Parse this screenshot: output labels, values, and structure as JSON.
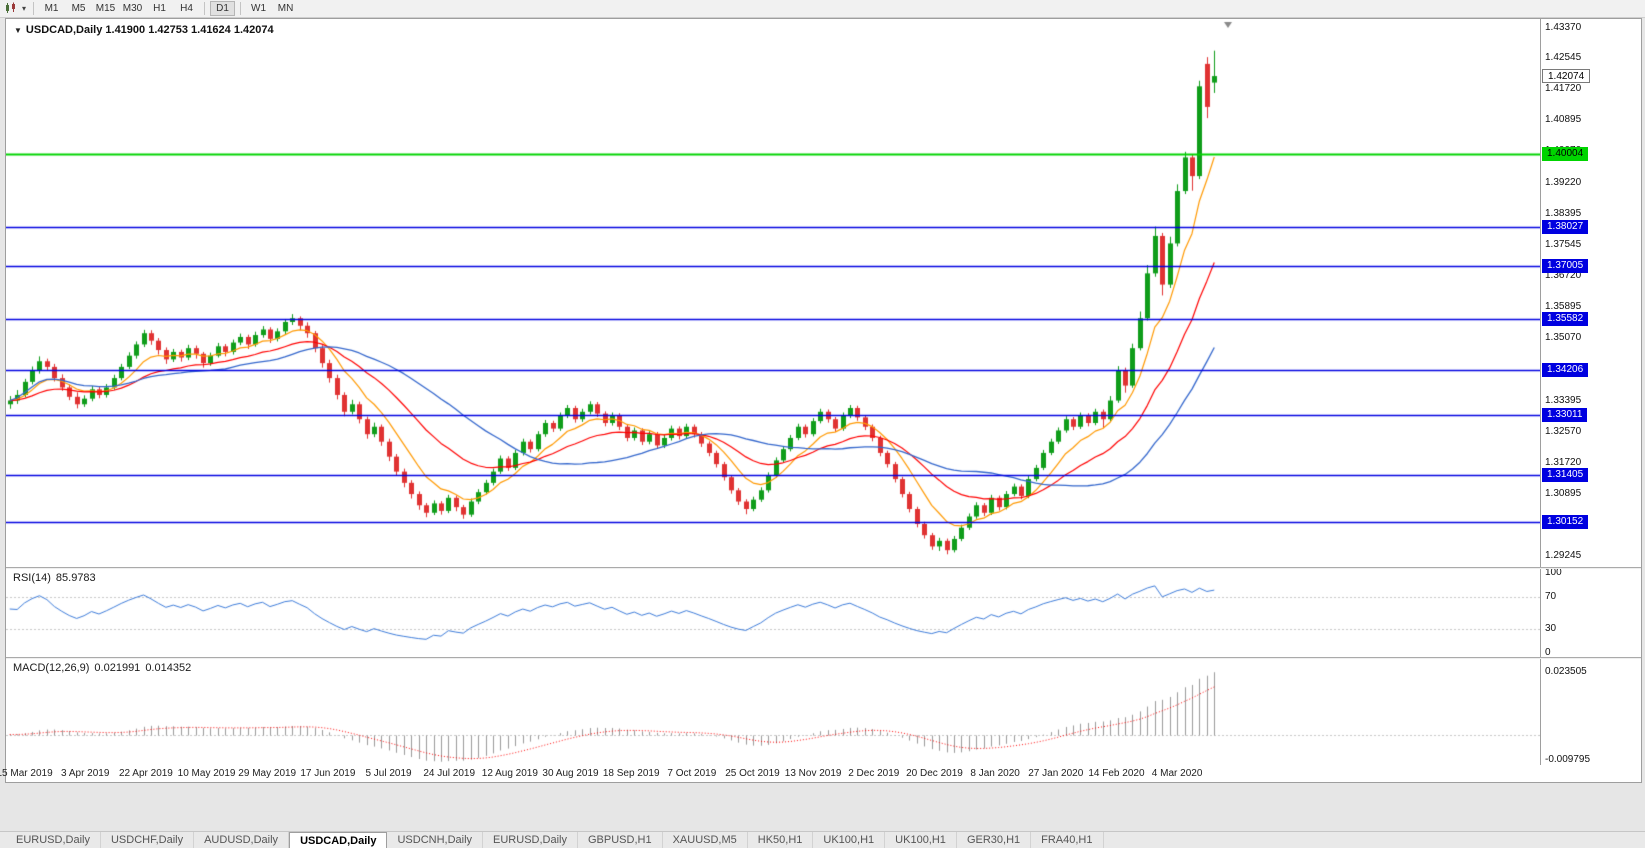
{
  "toolbar": {
    "timeframes": [
      "M1",
      "M5",
      "M15",
      "M30",
      "H1",
      "H4",
      "D1",
      "W1",
      "MN"
    ],
    "active_timeframe": "D1"
  },
  "chart": {
    "symbol_period": "USDCAD,Daily",
    "ohlc_text": "1.41900 1.42753 1.41624 1.42074",
    "open": "1.41900",
    "high": "1.42753",
    "low": "1.41624",
    "close": "1.42074",
    "current_price": "1.42074",
    "price_ticks": [
      "1.43370",
      "1.42545",
      "1.41720",
      "1.40895",
      "1.40070",
      "1.39220",
      "1.38395",
      "1.37545",
      "1.36720",
      "1.35895",
      "1.35070",
      "1.34245",
      "1.33395",
      "1.32570",
      "1.31720",
      "1.30895",
      "1.30070",
      "1.29245"
    ],
    "date_labels": [
      "15 Mar 2019",
      "3 Apr 2019",
      "22 Apr 2019",
      "10 May 2019",
      "29 May 2019",
      "17 Jun 2019",
      "5 Jul 2019",
      "24 Jul 2019",
      "12 Aug 2019",
      "30 Aug 2019",
      "18 Sep 2019",
      "7 Oct 2019",
      "25 Oct 2019",
      "13 Nov 2019",
      "2 Dec 2019",
      "20 Dec 2019",
      "8 Jan 2020",
      "27 Jan 2020",
      "14 Feb 2020",
      "4 Mar 2020"
    ],
    "hlines": [
      {
        "value": 1.40004,
        "label": "1.40004",
        "color": "#00d400",
        "text_color": "#000000",
        "width": 2
      },
      {
        "value": 1.38027,
        "label": "1.38027",
        "color": "#0000e0",
        "text_color": "#ffffff",
        "width": 1.5
      },
      {
        "value": 1.37005,
        "label": "1.37005",
        "color": "#0000e0",
        "text_color": "#ffffff",
        "width": 1.5
      },
      {
        "value": 1.35582,
        "label": "1.35582",
        "color": "#0000e0",
        "text_color": "#ffffff",
        "width": 1.5
      },
      {
        "value": 1.34206,
        "label": "1.34206",
        "color": "#0000e0",
        "text_color": "#ffffff",
        "width": 1.5
      },
      {
        "value": 1.33011,
        "label": "1.33011",
        "color": "#0000e0",
        "text_color": "#ffffff",
        "width": 1.5
      },
      {
        "value": 1.31405,
        "label": "1.31405",
        "color": "#0000e0",
        "text_color": "#ffffff",
        "width": 1.5
      },
      {
        "value": 1.30152,
        "label": "1.30152",
        "color": "#0000e0",
        "text_color": "#ffffff",
        "width": 1.5
      }
    ]
  },
  "rsi": {
    "name": "RSI(14)",
    "value": "85.9783",
    "scale": [
      "100",
      "70",
      "30",
      "0"
    ],
    "levels": [
      70,
      30
    ]
  },
  "macd": {
    "name": "MACD(12,26,9)",
    "value_main": "0.021991",
    "value_signal": "0.014352",
    "scale_top": "0.023505",
    "scale_bottom": "-0.009795"
  },
  "tabs": {
    "items": [
      "EURUSD,Daily",
      "USDCHF,Daily",
      "AUDUSD,Daily",
      "USDCAD,Daily",
      "USDCNH,Daily",
      "EURUSD,Daily",
      "GBPUSD,H1",
      "XAUUSD,M5",
      "HK50,H1",
      "UK100,H1",
      "UK100,H1",
      "GER30,H1",
      "FRA40,H1"
    ],
    "active_index": 3
  },
  "colors": {
    "candle_up": "#0f9d1a",
    "candle_down": "#e03232",
    "ma_fast": "#ff9900",
    "ma_mid": "#ff0000",
    "ma_slow": "#3366cc",
    "hline_blue": "#0000e0",
    "hline_green": "#00d400",
    "rsi_line": "#3c7bd9",
    "macd_hist": "#9a9a9a",
    "macd_signal": "#ff0000",
    "background": "#ffffff"
  },
  "chart_data": {
    "type": "candlestick",
    "symbol": "USDCAD",
    "timeframe": "Daily",
    "title": "USDCAD,Daily",
    "price_range": [
      1.2895,
      1.436
    ],
    "visible_dates": [
      "15 Mar 2019",
      "4 Mar 2020"
    ],
    "moving_averages": [
      {
        "name": "fast-ma",
        "method": "ema",
        "period": 8,
        "color": "#ff9900"
      },
      {
        "name": "mid-ma",
        "method": "ema",
        "period": 21,
        "color": "#ff0000"
      },
      {
        "name": "slow-ma",
        "method": "sma",
        "period": 30,
        "color": "#3366cc"
      }
    ],
    "indicators": [
      {
        "type": "RSI",
        "period": 14,
        "last": 85.9783,
        "levels": [
          30,
          70
        ],
        "range": [
          0,
          100
        ]
      },
      {
        "type": "MACD",
        "params": [
          12,
          26,
          9
        ],
        "last_main": 0.021991,
        "last_signal": 0.014352,
        "range": [
          -0.009795,
          0.023505
        ]
      }
    ],
    "horizontal_levels": [
      1.40004,
      1.38027,
      1.37005,
      1.35582,
      1.34206,
      1.33011,
      1.31405,
      1.30152
    ],
    "candles": [
      [
        1.333,
        1.3352,
        1.3318,
        1.334
      ],
      [
        1.334,
        1.3368,
        1.3331,
        1.3355
      ],
      [
        1.3355,
        1.3398,
        1.3349,
        1.339
      ],
      [
        1.339,
        1.3431,
        1.3383,
        1.342
      ],
      [
        1.342,
        1.3458,
        1.3412,
        1.3445
      ],
      [
        1.3445,
        1.3452,
        1.342,
        1.343
      ],
      [
        1.343,
        1.3438,
        1.3391,
        1.34
      ],
      [
        1.34,
        1.341,
        1.3366,
        1.3375
      ],
      [
        1.3375,
        1.3383,
        1.3341,
        1.335
      ],
      [
        1.335,
        1.3362,
        1.3319,
        1.333
      ],
      [
        1.333,
        1.3354,
        1.3323,
        1.3345
      ],
      [
        1.3345,
        1.3379,
        1.3338,
        1.337
      ],
      [
        1.337,
        1.3377,
        1.3346,
        1.3355
      ],
      [
        1.3355,
        1.3384,
        1.3348,
        1.3375
      ],
      [
        1.3375,
        1.3409,
        1.3369,
        1.34
      ],
      [
        1.34,
        1.3438,
        1.3394,
        1.343
      ],
      [
        1.343,
        1.3469,
        1.3424,
        1.346
      ],
      [
        1.346,
        1.3498,
        1.3452,
        1.349
      ],
      [
        1.349,
        1.3529,
        1.3483,
        1.352
      ],
      [
        1.352,
        1.3528,
        1.3489,
        1.35
      ],
      [
        1.35,
        1.3507,
        1.3463,
        1.3475
      ],
      [
        1.3475,
        1.3482,
        1.3438,
        1.345
      ],
      [
        1.345,
        1.3478,
        1.3443,
        1.347
      ],
      [
        1.347,
        1.3476,
        1.3444,
        1.3455
      ],
      [
        1.3455,
        1.3489,
        1.3448,
        1.348
      ],
      [
        1.348,
        1.3487,
        1.3452,
        1.3465
      ],
      [
        1.3465,
        1.347,
        1.3428,
        1.344
      ],
      [
        1.344,
        1.3468,
        1.3433,
        1.346
      ],
      [
        1.346,
        1.3494,
        1.3455,
        1.3485
      ],
      [
        1.3485,
        1.3491,
        1.3458,
        1.347
      ],
      [
        1.347,
        1.3503,
        1.3463,
        1.3495
      ],
      [
        1.3495,
        1.3519,
        1.3488,
        1.351
      ],
      [
        1.351,
        1.3516,
        1.3478,
        1.349
      ],
      [
        1.349,
        1.3524,
        1.3484,
        1.3515
      ],
      [
        1.3515,
        1.3539,
        1.3508,
        1.353
      ],
      [
        1.353,
        1.3536,
        1.3494,
        1.3505
      ],
      [
        1.3505,
        1.3533,
        1.3498,
        1.3525
      ],
      [
        1.3525,
        1.3558,
        1.3518,
        1.355
      ],
      [
        1.355,
        1.3571,
        1.3542,
        1.356
      ],
      [
        1.356,
        1.3565,
        1.3528,
        1.354
      ],
      [
        1.354,
        1.3549,
        1.3508,
        1.352
      ],
      [
        1.352,
        1.3526,
        1.3469,
        1.348
      ],
      [
        1.348,
        1.3488,
        1.3428,
        1.344
      ],
      [
        1.344,
        1.3449,
        1.3388,
        1.34
      ],
      [
        1.34,
        1.3409,
        1.3343,
        1.3355
      ],
      [
        1.3355,
        1.3362,
        1.3298,
        1.331
      ],
      [
        1.331,
        1.3342,
        1.3303,
        1.333
      ],
      [
        1.333,
        1.3337,
        1.3279,
        1.329
      ],
      [
        1.329,
        1.3297,
        1.3238,
        1.325
      ],
      [
        1.325,
        1.3281,
        1.3242,
        1.327
      ],
      [
        1.327,
        1.3276,
        1.3219,
        1.323
      ],
      [
        1.323,
        1.3238,
        1.3178,
        1.319
      ],
      [
        1.319,
        1.3197,
        1.3139,
        1.315
      ],
      [
        1.315,
        1.3158,
        1.3108,
        1.312
      ],
      [
        1.312,
        1.3127,
        1.3078,
        1.309
      ],
      [
        1.309,
        1.3097,
        1.3048,
        1.306
      ],
      [
        1.306,
        1.3066,
        1.3028,
        1.304
      ],
      [
        1.304,
        1.3073,
        1.3034,
        1.3065
      ],
      [
        1.3065,
        1.3071,
        1.3035,
        1.3045
      ],
      [
        1.3045,
        1.3088,
        1.3039,
        1.308
      ],
      [
        1.308,
        1.3086,
        1.3044,
        1.3055
      ],
      [
        1.3055,
        1.3061,
        1.3024,
        1.3035
      ],
      [
        1.3035,
        1.3078,
        1.3029,
        1.307
      ],
      [
        1.307,
        1.3103,
        1.3063,
        1.3095
      ],
      [
        1.3095,
        1.3128,
        1.3089,
        1.312
      ],
      [
        1.312,
        1.3158,
        1.3113,
        1.315
      ],
      [
        1.315,
        1.3193,
        1.3144,
        1.3185
      ],
      [
        1.3185,
        1.3191,
        1.3152,
        1.316
      ],
      [
        1.316,
        1.3208,
        1.3154,
        1.32
      ],
      [
        1.32,
        1.3238,
        1.3193,
        1.323
      ],
      [
        1.323,
        1.3236,
        1.3201,
        1.321
      ],
      [
        1.321,
        1.3258,
        1.3204,
        1.325
      ],
      [
        1.325,
        1.3288,
        1.3243,
        1.328
      ],
      [
        1.328,
        1.3286,
        1.3256,
        1.3265
      ],
      [
        1.3265,
        1.3308,
        1.3259,
        1.33
      ],
      [
        1.33,
        1.3328,
        1.3293,
        1.332
      ],
      [
        1.332,
        1.3326,
        1.3281,
        1.329
      ],
      [
        1.329,
        1.3318,
        1.3283,
        1.331
      ],
      [
        1.331,
        1.3338,
        1.3303,
        1.333
      ],
      [
        1.333,
        1.3336,
        1.3296,
        1.3305
      ],
      [
        1.3305,
        1.3311,
        1.3271,
        1.328
      ],
      [
        1.328,
        1.3308,
        1.3273,
        1.33
      ],
      [
        1.33,
        1.3306,
        1.3261,
        1.327
      ],
      [
        1.327,
        1.3276,
        1.3231,
        1.324
      ],
      [
        1.324,
        1.3268,
        1.3233,
        1.326
      ],
      [
        1.326,
        1.3266,
        1.3221,
        1.323
      ],
      [
        1.323,
        1.3258,
        1.3223,
        1.325
      ],
      [
        1.325,
        1.3256,
        1.3211,
        1.322
      ],
      [
        1.322,
        1.3248,
        1.3213,
        1.324
      ],
      [
        1.324,
        1.3273,
        1.3233,
        1.3265
      ],
      [
        1.3265,
        1.3271,
        1.3236,
        1.3245
      ],
      [
        1.3245,
        1.3278,
        1.3238,
        1.327
      ],
      [
        1.327,
        1.3276,
        1.3241,
        1.325
      ],
      [
        1.325,
        1.3256,
        1.3216,
        1.3225
      ],
      [
        1.3225,
        1.3231,
        1.3191,
        1.32
      ],
      [
        1.32,
        1.3206,
        1.3161,
        1.317
      ],
      [
        1.317,
        1.3176,
        1.3126,
        1.3135
      ],
      [
        1.3135,
        1.3141,
        1.3091,
        1.31
      ],
      [
        1.31,
        1.3106,
        1.3061,
        1.307
      ],
      [
        1.307,
        1.3076,
        1.3036,
        1.305
      ],
      [
        1.305,
        1.3083,
        1.3044,
        1.3075
      ],
      [
        1.3075,
        1.3108,
        1.3069,
        1.31
      ],
      [
        1.31,
        1.3148,
        1.3094,
        1.314
      ],
      [
        1.314,
        1.3188,
        1.3134,
        1.318
      ],
      [
        1.318,
        1.3218,
        1.3174,
        1.321
      ],
      [
        1.321,
        1.3248,
        1.3204,
        1.324
      ],
      [
        1.324,
        1.3278,
        1.3234,
        1.327
      ],
      [
        1.327,
        1.3276,
        1.3241,
        1.325
      ],
      [
        1.325,
        1.3293,
        1.3244,
        1.3285
      ],
      [
        1.3285,
        1.3318,
        1.3279,
        1.331
      ],
      [
        1.331,
        1.3316,
        1.3281,
        1.329
      ],
      [
        1.329,
        1.3296,
        1.3256,
        1.3265
      ],
      [
        1.3265,
        1.3308,
        1.3259,
        1.33
      ],
      [
        1.33,
        1.3328,
        1.3293,
        1.332
      ],
      [
        1.332,
        1.3326,
        1.3286,
        1.3295
      ],
      [
        1.3295,
        1.3301,
        1.3261,
        1.327
      ],
      [
        1.327,
        1.3276,
        1.3231,
        1.324
      ],
      [
        1.324,
        1.3246,
        1.3191,
        1.32
      ],
      [
        1.32,
        1.3206,
        1.3161,
        1.317
      ],
      [
        1.317,
        1.3176,
        1.3121,
        1.313
      ],
      [
        1.313,
        1.3136,
        1.3081,
        1.309
      ],
      [
        1.309,
        1.3096,
        1.3041,
        1.305
      ],
      [
        1.305,
        1.3056,
        1.3001,
        1.301
      ],
      [
        1.301,
        1.3016,
        1.2971,
        1.298
      ],
      [
        1.298,
        1.2986,
        1.2941,
        1.295
      ],
      [
        1.295,
        1.2973,
        1.2938,
        1.2965
      ],
      [
        1.2965,
        1.2971,
        1.2929,
        1.294
      ],
      [
        1.294,
        1.2978,
        1.2934,
        1.297
      ],
      [
        1.297,
        1.3008,
        1.2964,
        1.3
      ],
      [
        1.3,
        1.3038,
        1.2994,
        1.303
      ],
      [
        1.303,
        1.3068,
        1.3024,
        1.306
      ],
      [
        1.306,
        1.3066,
        1.3031,
        1.304
      ],
      [
        1.304,
        1.3088,
        1.3034,
        1.308
      ],
      [
        1.308,
        1.3086,
        1.3046,
        1.3055
      ],
      [
        1.3055,
        1.3098,
        1.3049,
        1.309
      ],
      [
        1.309,
        1.3118,
        1.3084,
        1.311
      ],
      [
        1.311,
        1.3116,
        1.3076,
        1.3085
      ],
      [
        1.3085,
        1.3138,
        1.3079,
        1.313
      ],
      [
        1.313,
        1.3168,
        1.3124,
        1.316
      ],
      [
        1.316,
        1.3208,
        1.3154,
        1.32
      ],
      [
        1.32,
        1.3238,
        1.3194,
        1.323
      ],
      [
        1.323,
        1.3268,
        1.3224,
        1.326
      ],
      [
        1.326,
        1.3298,
        1.3254,
        1.329
      ],
      [
        1.329,
        1.3296,
        1.3261,
        1.327
      ],
      [
        1.327,
        1.3308,
        1.3264,
        1.33
      ],
      [
        1.33,
        1.3306,
        1.3271,
        1.328
      ],
      [
        1.328,
        1.3318,
        1.3274,
        1.331
      ],
      [
        1.331,
        1.3316,
        1.3266,
        1.329
      ],
      [
        1.329,
        1.3352,
        1.3284,
        1.334
      ],
      [
        1.334,
        1.3432,
        1.3334,
        1.342
      ],
      [
        1.342,
        1.3428,
        1.3361,
        1.338
      ],
      [
        1.338,
        1.3492,
        1.3374,
        1.348
      ],
      [
        1.348,
        1.3578,
        1.3474,
        1.356
      ],
      [
        1.356,
        1.3702,
        1.3554,
        1.368
      ],
      [
        1.368,
        1.3805,
        1.3671,
        1.378
      ],
      [
        1.378,
        1.3788,
        1.3621,
        1.365
      ],
      [
        1.365,
        1.3778,
        1.3641,
        1.376
      ],
      [
        1.376,
        1.3918,
        1.3752,
        1.39
      ],
      [
        1.39,
        1.4005,
        1.3892,
        1.399
      ],
      [
        1.399,
        1.3998,
        1.3901,
        1.394
      ],
      [
        1.394,
        1.4195,
        1.3932,
        1.418
      ],
      [
        1.424,
        1.4258,
        1.4095,
        1.4125
      ],
      [
        1.419,
        1.42753,
        1.41624,
        1.42074
      ]
    ]
  }
}
